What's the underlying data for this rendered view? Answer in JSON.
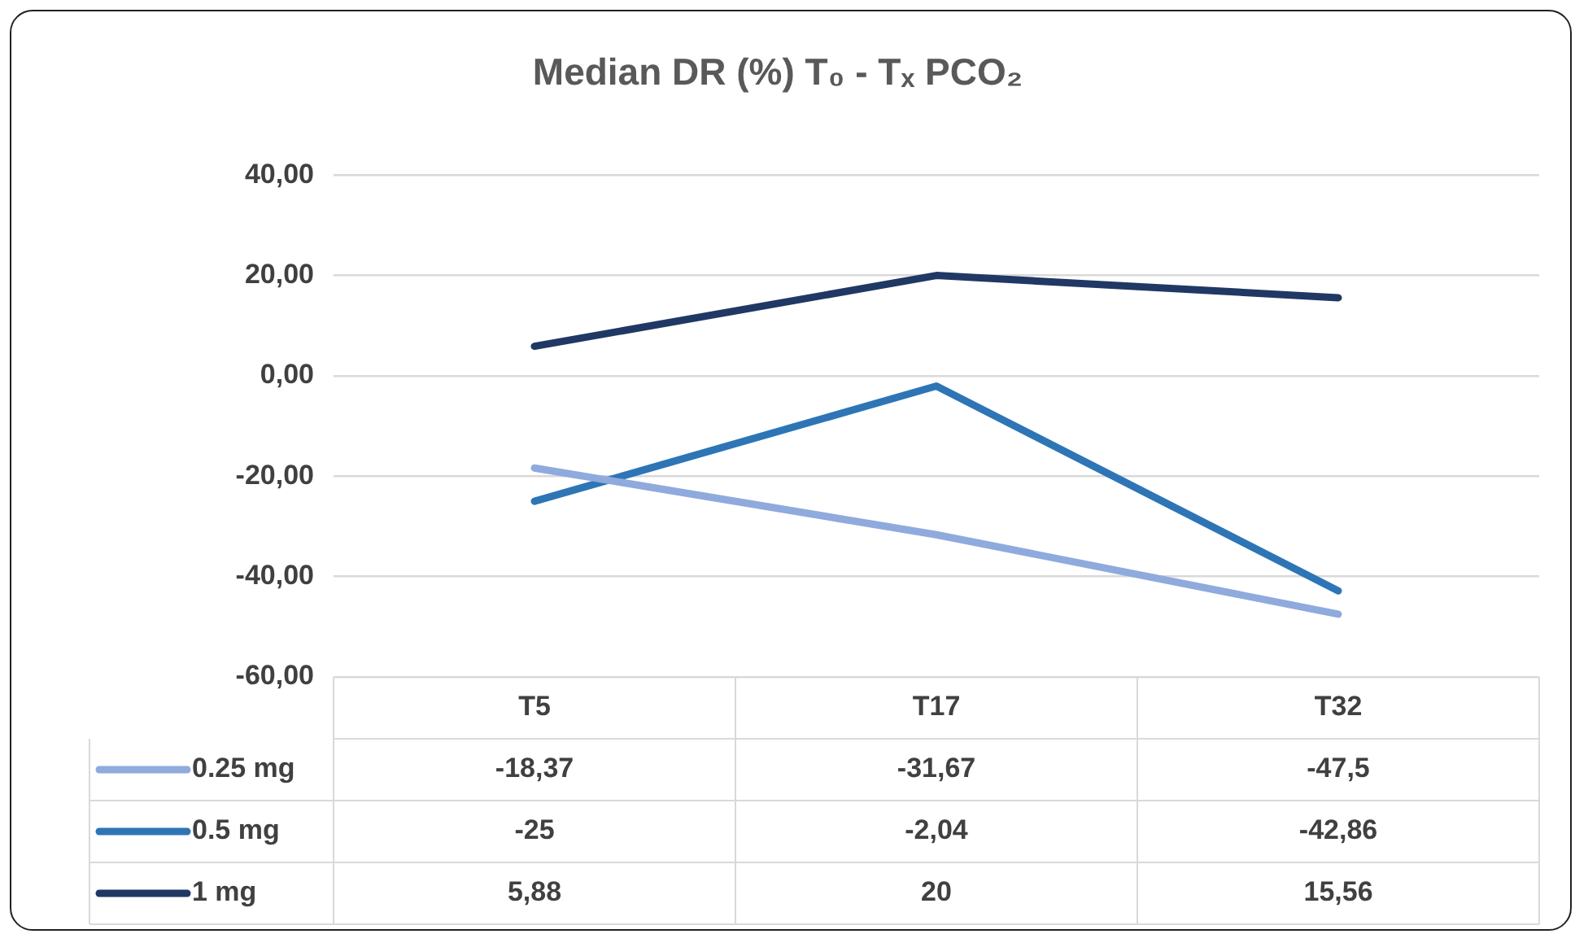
{
  "chart_data": {
    "type": "line",
    "title": "Median DR (%) T₀ - Tₓ PCO₂",
    "categories": [
      "T5",
      "T17",
      "T32"
    ],
    "series": [
      {
        "name": "0.25 mg",
        "color": "#8faadc",
        "values": [
          -18.37,
          -31.67,
          -47.5
        ],
        "value_labels": [
          "-18,37",
          "-31,67",
          "-47,5"
        ]
      },
      {
        "name": "0.5 mg",
        "color": "#2e75b6",
        "values": [
          -25,
          -2.04,
          -42.86
        ],
        "value_labels": [
          "-25",
          "-2,04",
          "-42,86"
        ]
      },
      {
        "name": "1 mg",
        "color": "#203864",
        "values": [
          5.88,
          20,
          15.56
        ],
        "value_labels": [
          "5,88",
          "20",
          "15,56"
        ]
      }
    ],
    "ylim": [
      -60,
      40
    ],
    "yticks": [
      {
        "value": -60,
        "label": "-60,00"
      },
      {
        "value": -40,
        "label": "-40,00"
      },
      {
        "value": -20,
        "label": "-20,00"
      },
      {
        "value": 0,
        "label": "0,00"
      },
      {
        "value": 20,
        "label": "20,00"
      },
      {
        "value": 40,
        "label": "40,00"
      }
    ],
    "grid": "y",
    "legend": "bottom",
    "marker": "none",
    "line_style": "solid"
  }
}
